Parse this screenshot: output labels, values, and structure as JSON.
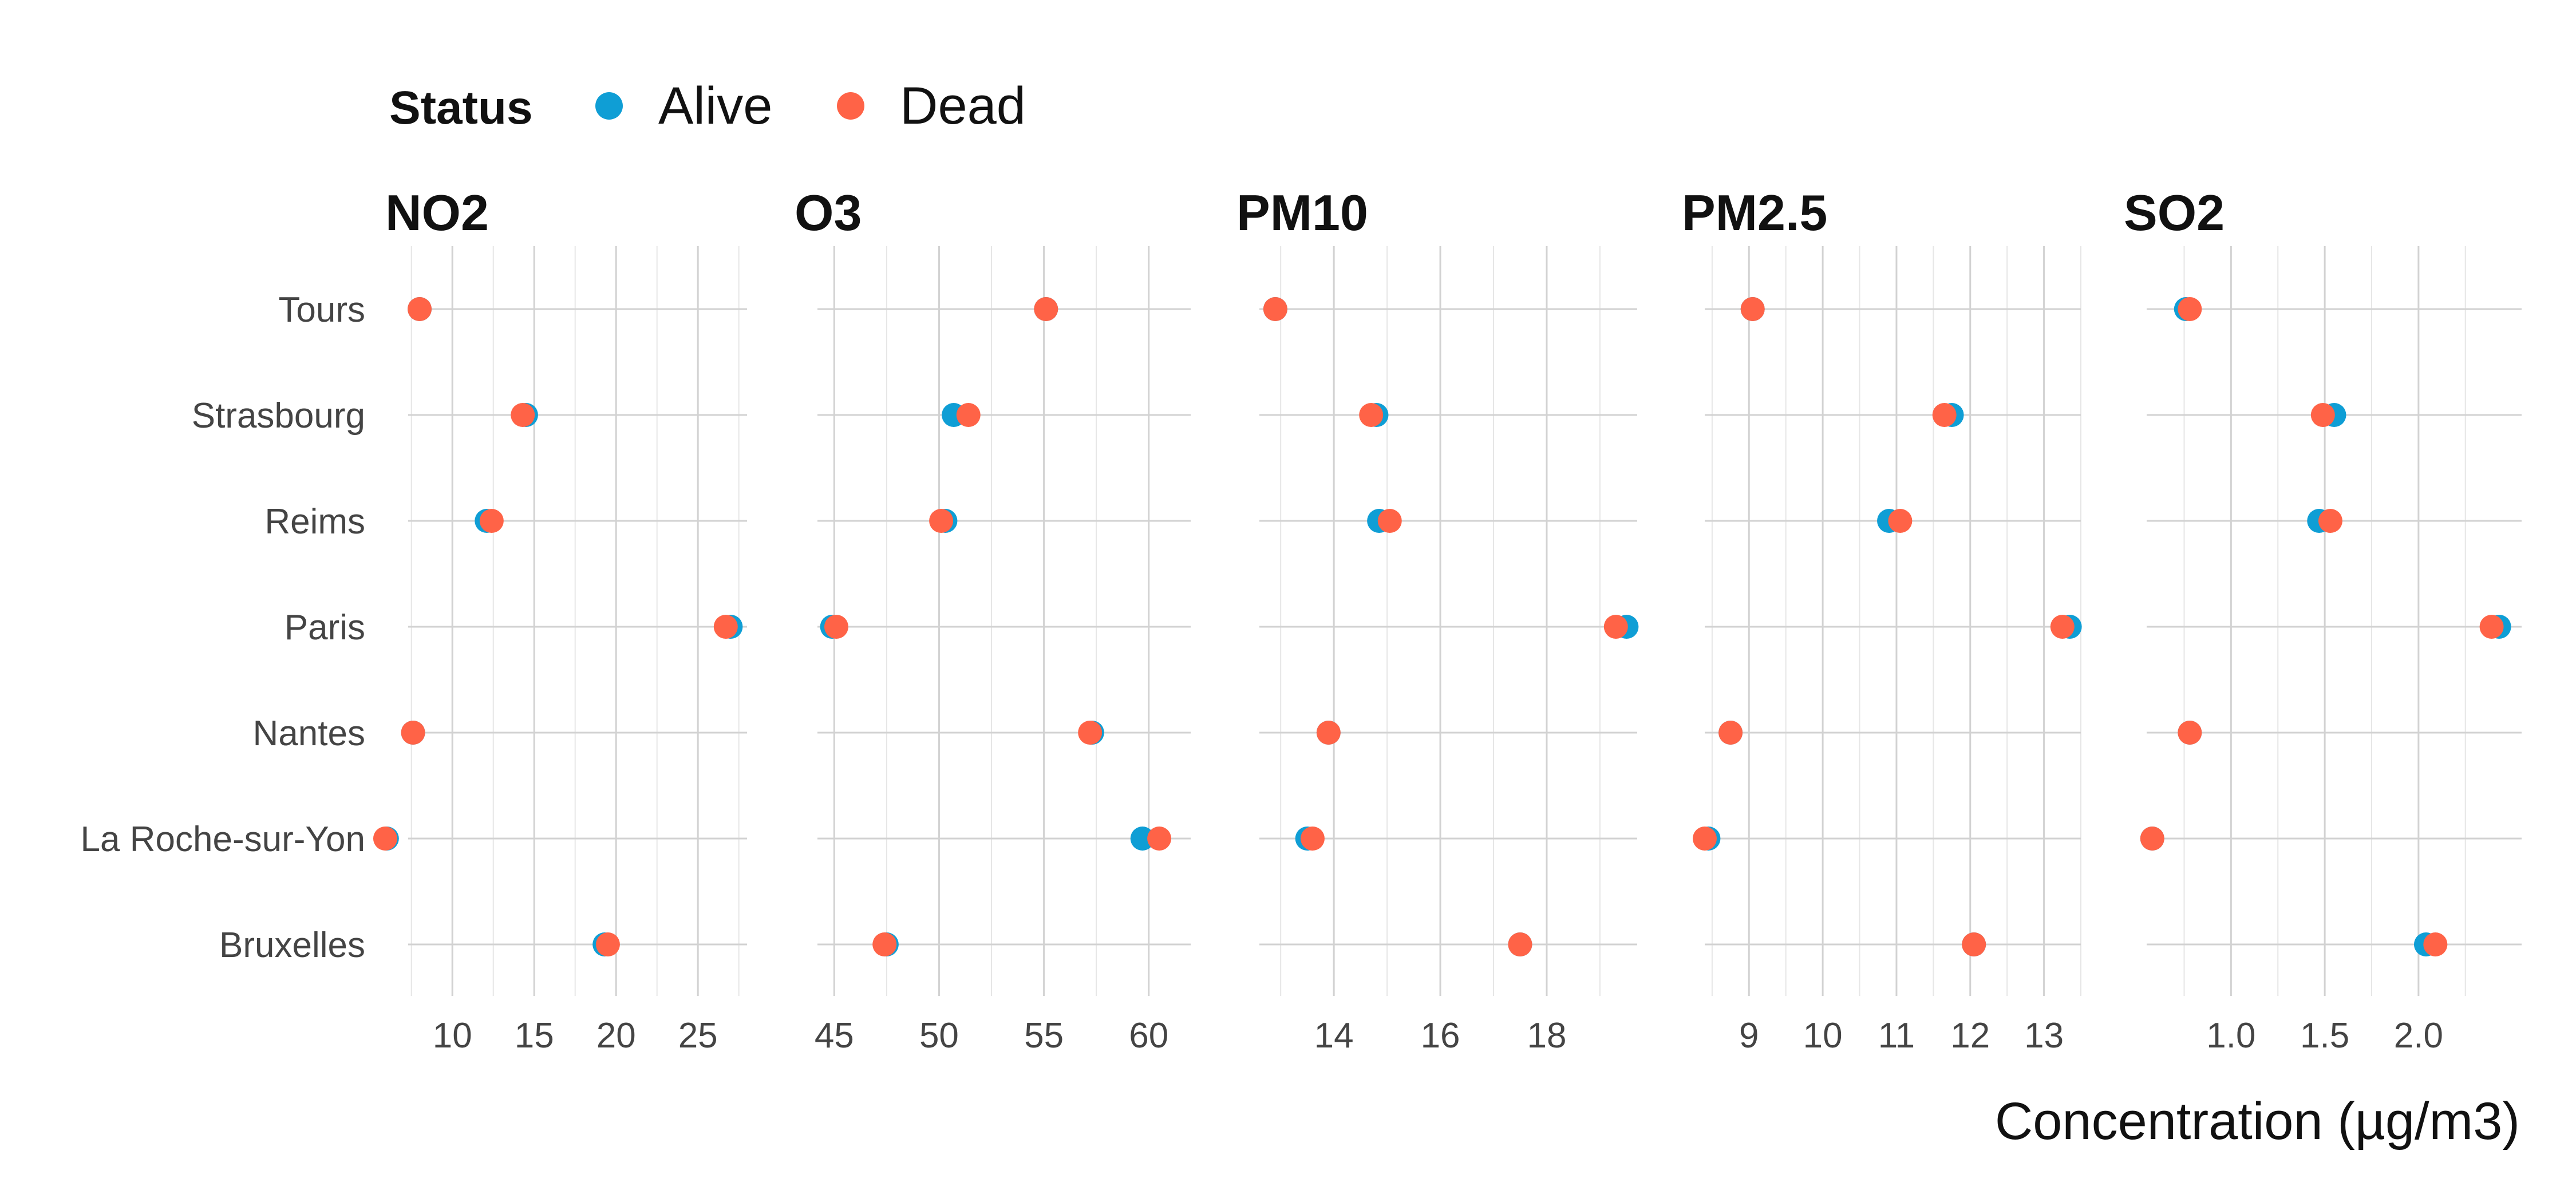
{
  "chart_data": {
    "type": "scatter",
    "xlabel": "Concentration (µg/m3)",
    "legend": {
      "title": "Status",
      "placement": "top-left",
      "entries": [
        {
          "name": "Alive",
          "color": "#0f9ed5"
        },
        {
          "name": "Dead",
          "color": "#ff6347"
        }
      ]
    },
    "categories": [
      "Tours",
      "Strasbourg",
      "Reims",
      "Paris",
      "Nantes",
      "La Roche-sur-Yon",
      "Bruxelles"
    ],
    "grid": true,
    "panels": [
      {
        "title": "NO2",
        "xlim": [
          7.3,
          28.0
        ],
        "ticks": [
          10,
          15,
          20,
          25
        ],
        "minor_ticks": [
          7.5,
          12.5,
          17.5,
          22.5,
          27.5
        ],
        "series": [
          {
            "name": "Alive",
            "values": {
              "Tours": 8.0,
              "Strasbourg": 14.5,
              "Reims": 12.1,
              "Paris": 27.0,
              "Nantes": 7.6,
              "La Roche-sur-Yon": 6.0,
              "Bruxelles": 19.3
            }
          },
          {
            "name": "Dead",
            "values": {
              "Tours": 8.0,
              "Strasbourg": 14.3,
              "Reims": 12.4,
              "Paris": 26.7,
              "Nantes": 7.6,
              "La Roche-sur-Yon": 5.9,
              "Bruxelles": 19.5
            }
          }
        ]
      },
      {
        "title": "O3",
        "xlim": [
          44.2,
          62.0
        ],
        "ticks": [
          45,
          50,
          55,
          60
        ],
        "minor_ticks": [
          47.5,
          52.5,
          57.5
        ],
        "series": [
          {
            "name": "Alive",
            "values": {
              "Tours": 55.1,
              "Strasbourg": 50.7,
              "Reims": 50.3,
              "Paris": 44.9,
              "Nantes": 57.3,
              "La Roche-sur-Yon": 59.7,
              "Bruxelles": 47.5
            }
          },
          {
            "name": "Dead",
            "values": {
              "Tours": 55.1,
              "Strasbourg": 51.4,
              "Reims": 50.1,
              "Paris": 45.1,
              "Nantes": 57.2,
              "La Roche-sur-Yon": 60.5,
              "Bruxelles": 47.4
            }
          }
        ]
      },
      {
        "title": "PM10",
        "xlim": [
          12.6,
          19.7
        ],
        "ticks": [
          14,
          16,
          18
        ],
        "minor_ticks": [
          13,
          15,
          17,
          19
        ],
        "series": [
          {
            "name": "Alive",
            "values": {
              "Tours": 12.9,
              "Strasbourg": 14.8,
              "Reims": 14.85,
              "Paris": 19.5,
              "Nantes": 13.9,
              "La Roche-sur-Yon": 13.5,
              "Bruxelles": 17.5
            }
          },
          {
            "name": "Dead",
            "values": {
              "Tours": 12.9,
              "Strasbourg": 14.7,
              "Reims": 15.05,
              "Paris": 19.3,
              "Nantes": 13.9,
              "La Roche-sur-Yon": 13.6,
              "Bruxelles": 17.5
            }
          }
        ]
      },
      {
        "title": "PM2.5",
        "xlim": [
          8.4,
          13.5
        ],
        "ticks": [
          9,
          10,
          11,
          12,
          13
        ],
        "minor_ticks": [
          8.5,
          9.5,
          10.5,
          11.5,
          12.5,
          13.5
        ],
        "series": [
          {
            "name": "Alive",
            "values": {
              "Tours": 9.05,
              "Strasbourg": 11.75,
              "Reims": 10.9,
              "Paris": 13.35,
              "Nantes": 8.75,
              "La Roche-sur-Yon": 8.45,
              "Bruxelles": 12.05
            }
          },
          {
            "name": "Dead",
            "values": {
              "Tours": 9.05,
              "Strasbourg": 11.65,
              "Reims": 11.05,
              "Paris": 13.25,
              "Nantes": 8.75,
              "La Roche-sur-Yon": 8.4,
              "Bruxelles": 12.05
            }
          }
        ]
      },
      {
        "title": "SO2",
        "xlim": [
          0.55,
          2.55
        ],
        "ticks": [
          1.0,
          1.5,
          2.0
        ],
        "minor_ticks": [
          0.75,
          1.25,
          1.75,
          2.25
        ],
        "tick_format": "0.0",
        "series": [
          {
            "name": "Alive",
            "values": {
              "Tours": 0.76,
              "Strasbourg": 1.55,
              "Reims": 1.47,
              "Paris": 2.43,
              "Nantes": 0.78,
              "La Roche-sur-Yon": 0.58,
              "Bruxelles": 2.04
            }
          },
          {
            "name": "Dead",
            "values": {
              "Tours": 0.78,
              "Strasbourg": 1.49,
              "Reims": 1.53,
              "Paris": 2.39,
              "Nantes": 0.78,
              "La Roche-sur-Yon": 0.58,
              "Bruxelles": 2.09
            }
          }
        ]
      }
    ]
  }
}
